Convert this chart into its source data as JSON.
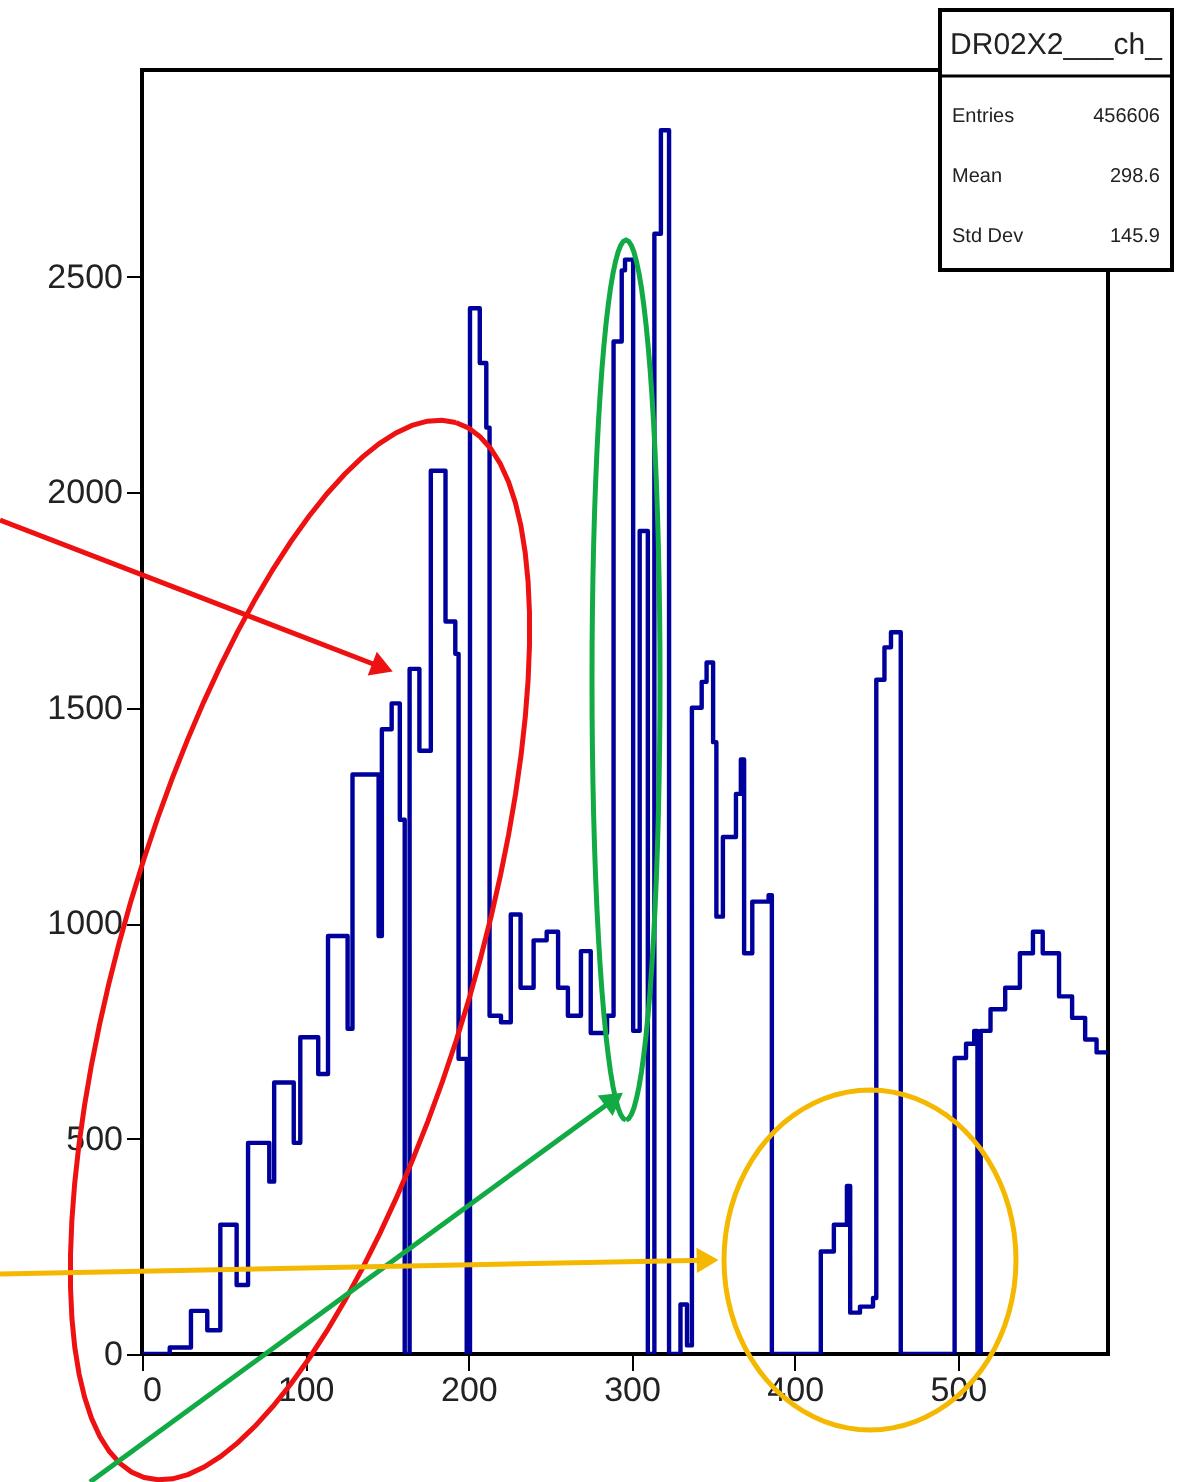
{
  "chart_data": {
    "type": "step",
    "x": [
      0,
      17,
      30,
      40,
      48,
      58,
      65,
      78,
      81,
      93,
      97,
      108,
      114,
      126,
      129,
      145,
      147,
      153,
      158,
      161,
      164,
      170,
      177,
      186,
      192,
      194,
      199,
      201,
      207,
      211,
      213,
      220,
      226,
      232,
      240,
      248,
      255,
      261,
      269,
      275,
      285,
      289,
      294,
      296,
      301,
      305,
      310,
      314,
      318,
      323,
      330,
      334,
      337,
      343,
      346,
      350,
      352,
      356,
      364,
      367,
      369,
      374,
      384,
      386,
      416,
      424,
      432,
      434,
      440,
      448,
      450,
      455,
      459,
      465,
      498,
      505,
      510,
      512,
      514,
      520,
      529,
      538,
      546,
      552,
      562,
      570,
      578,
      585,
      592
    ],
    "series": [
      {
        "color": "#00009c",
        "values": [
          0,
          15,
          100,
          55,
          300,
          160,
          490,
          400,
          630,
          490,
          735,
          650,
          970,
          755,
          1345,
          970,
          1450,
          1510,
          1240,
          0,
          1590,
          1400,
          2050,
          1700,
          1625,
          685,
          0,
          2427,
          2300,
          2150,
          785,
          770,
          1020,
          850,
          960,
          980,
          850,
          785,
          935,
          745,
          785,
          2350,
          2515,
          2540,
          750,
          1910,
          0,
          2600,
          2840,
          0,
          115,
          20,
          1500,
          1560,
          1605,
          1420,
          1015,
          1200,
          1300,
          1380,
          930,
          1050,
          1065,
          0,
          238,
          300,
          390,
          96,
          110,
          130,
          1565,
          1640,
          1675,
          0,
          687,
          720,
          750,
          0,
          750,
          800,
          850,
          930,
          980,
          930,
          830,
          780,
          730,
          700,
          700
        ]
      }
    ],
    "xlim": [
      0,
      592
    ],
    "ylim": [
      0,
      2980
    ],
    "xticks": [
      0,
      100,
      200,
      300,
      400,
      500
    ],
    "yticks": [
      0,
      500,
      1000,
      1500,
      2000,
      2500
    ],
    "grid": false,
    "legend": false,
    "annotations": [
      "DR02X2___ch_",
      "Entries",
      "456606",
      "Mean",
      "298.6",
      "Std Dev",
      "145.9"
    ]
  }
}
